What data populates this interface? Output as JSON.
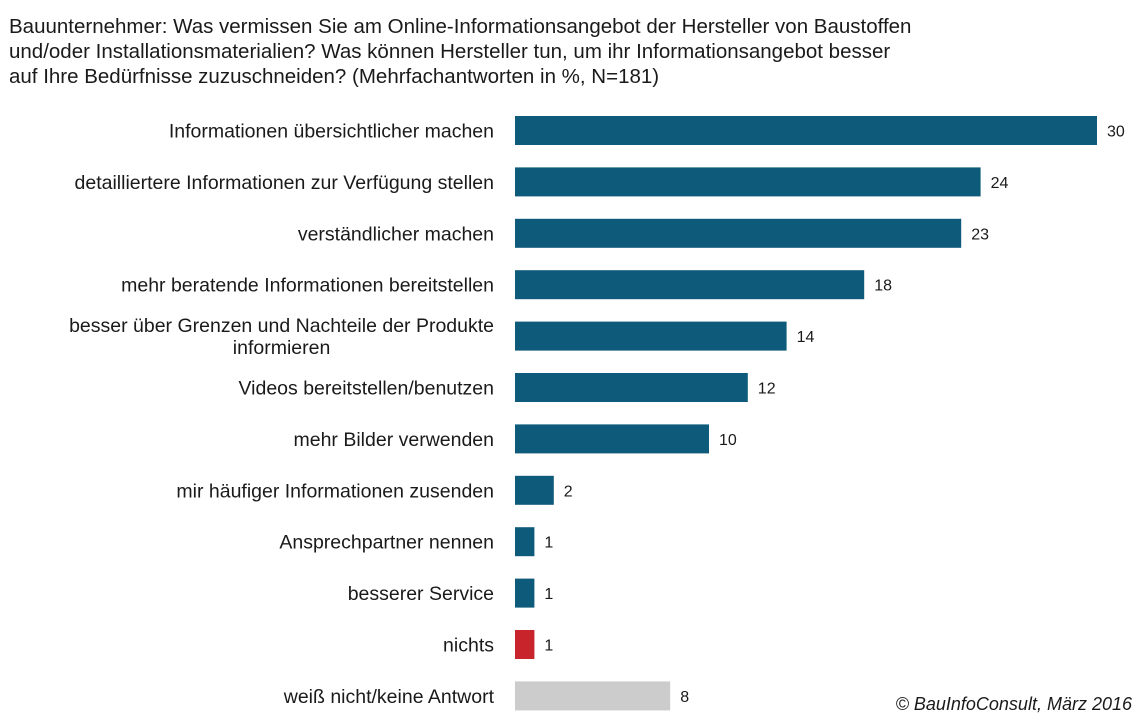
{
  "chart_data": {
    "type": "bar",
    "orientation": "horizontal",
    "title": "Bauunternehmer: Was vermissen Sie am Online-Informationsangebot der Hersteller von Baustoffen\nund/oder Installationsmaterialien? Was können Hersteller tun, um ihr Informationsangebot besser\nauf Ihre Bedürfnisse zuzuschneiden?  (Mehrfachantworten in %, N=181)",
    "categories": [
      "Informationen übersichtlicher machen",
      "detailliertere Informationen zur Verfügung stellen",
      "verständlicher machen",
      "mehr beratende Informationen bereitstellen",
      "besser über Grenzen und Nachteile der Produkte\ninformieren",
      "Videos bereitstellen/benutzen",
      "mehr Bilder verwenden",
      "mir häufiger Informationen zusenden",
      "Ansprechpartner nennen",
      "besserer Service",
      "nichts",
      "weiß nicht/keine Antwort"
    ],
    "values": [
      30,
      24,
      23,
      18,
      14,
      12,
      10,
      2,
      1,
      1,
      1,
      8
    ],
    "value_labels": [
      "30",
      "24",
      "23",
      "18",
      "14",
      "12",
      "10",
      "2",
      "1",
      "1",
      "1",
      "8"
    ],
    "bar_colors": [
      "#0e5a7a",
      "#0e5a7a",
      "#0e5a7a",
      "#0e5a7a",
      "#0e5a7a",
      "#0e5a7a",
      "#0e5a7a",
      "#0e5a7a",
      "#0e5a7a",
      "#0e5a7a",
      "#c8242b",
      "#cccccc"
    ],
    "xlim": [
      0,
      30
    ],
    "grid": false,
    "legend": "none",
    "xlabel": "",
    "ylabel": ""
  },
  "source": {
    "prefix": "© BauInfoConsult, ",
    "date": "März 2016"
  }
}
